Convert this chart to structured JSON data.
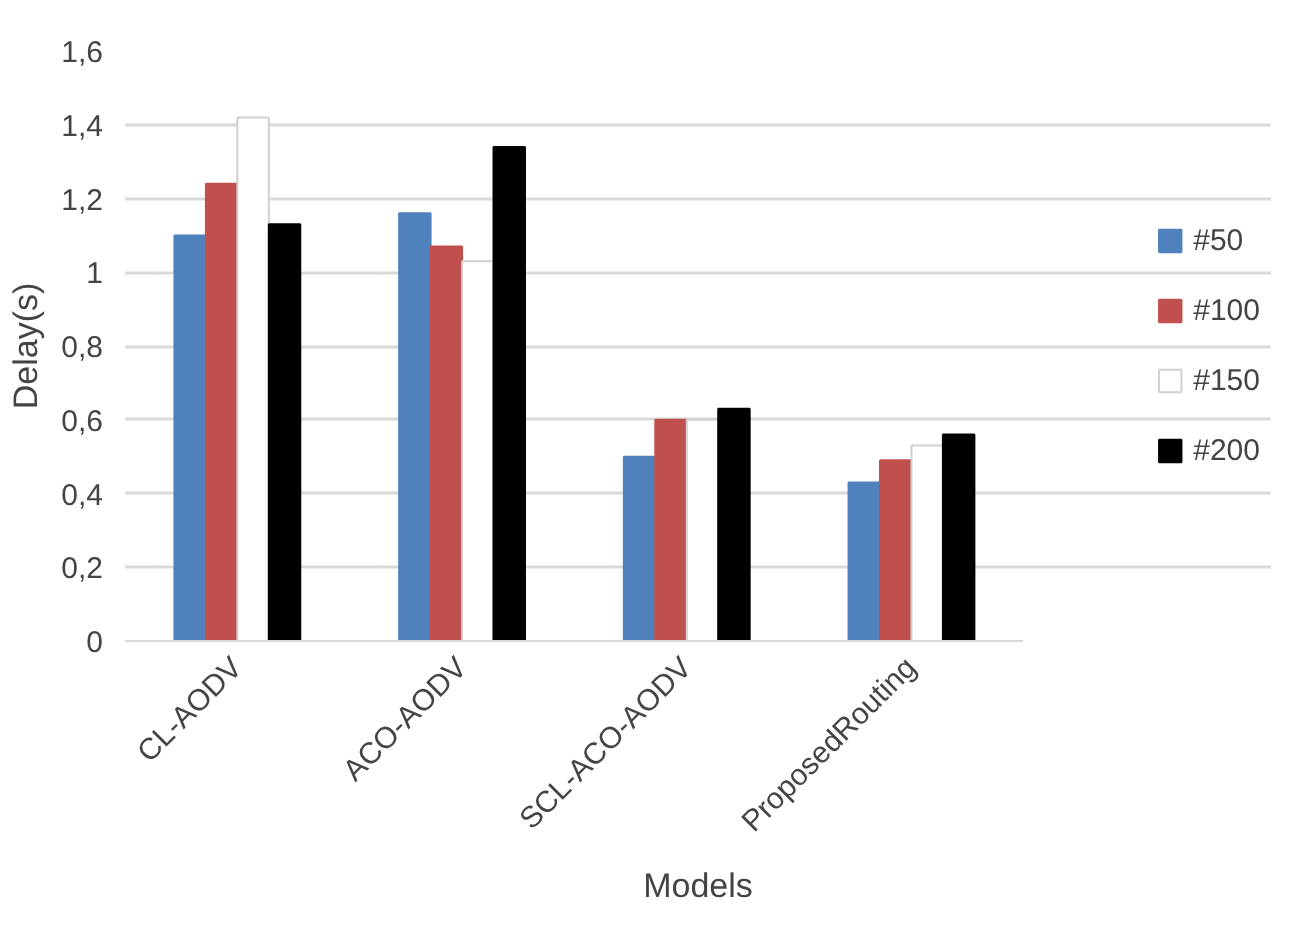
{
  "chart_data": {
    "type": "bar",
    "xlabel": "Models",
    "ylabel": "Delay(s)",
    "categories": [
      "CL-AODV",
      "ACO-AODV",
      "SCL-ACO-AODV",
      "ProposedRouting"
    ],
    "series": [
      {
        "name": "#50",
        "color": "#4f81bd",
        "values": [
          1.1,
          1.16,
          0.5,
          0.43
        ]
      },
      {
        "name": "#100",
        "color": "#c0504d",
        "values": [
          1.24,
          1.07,
          0.6,
          0.49
        ]
      },
      {
        "name": "#150",
        "color": "#ffffff",
        "values": [
          1.42,
          1.03,
          0.6,
          0.53
        ]
      },
      {
        "name": "#200",
        "color": "#000000",
        "values": [
          1.13,
          1.34,
          0.63,
          0.56
        ]
      }
    ],
    "ylim": [
      0,
      1.6
    ],
    "yticks": [
      0,
      {
        "value": 0.2,
        "label": "0,2"
      },
      {
        "value": 0.4,
        "label": "0,4"
      },
      {
        "value": 0.6,
        "label": "0,6"
      },
      {
        "value": 0.8,
        "label": "0,8"
      },
      1,
      {
        "value": 1.2,
        "label": "1,2"
      },
      {
        "value": 1.4,
        "label": "1,4"
      },
      {
        "value": 1.6,
        "label": "1,6"
      }
    ],
    "grid": "y",
    "legend": "right"
  }
}
